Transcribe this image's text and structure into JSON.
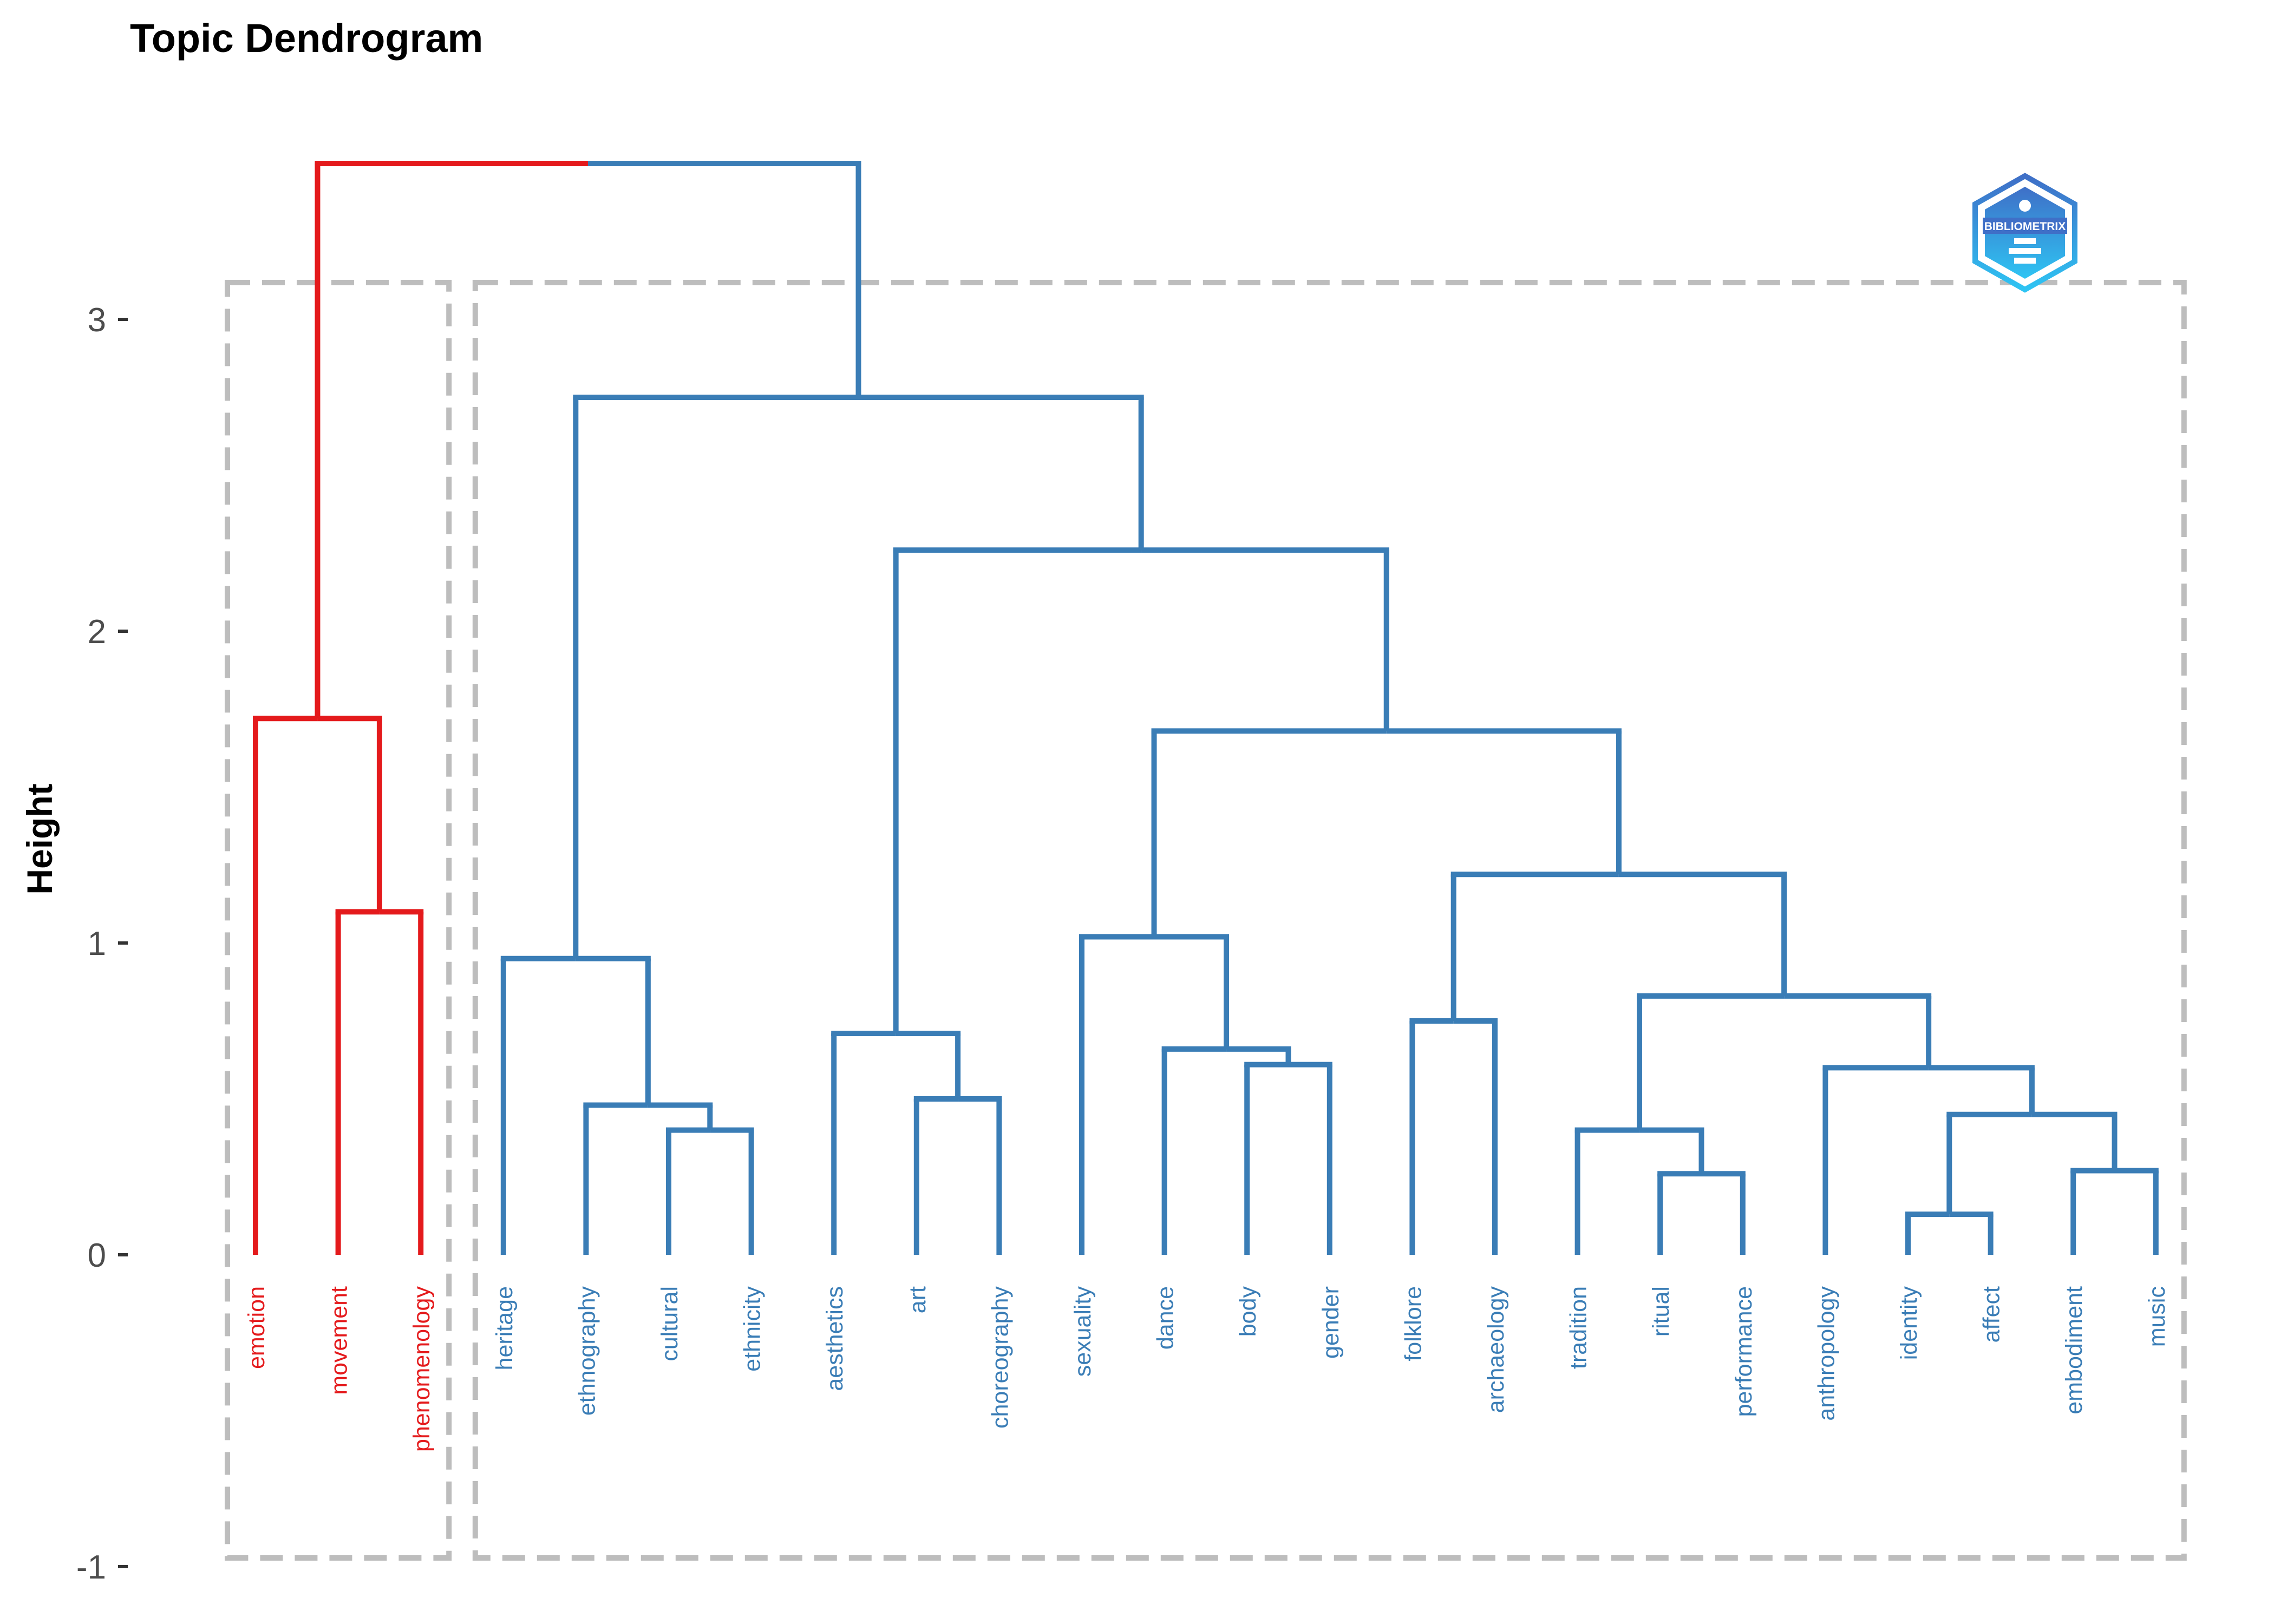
{
  "chart_data": {
    "type": "dendrogram",
    "title": "Topic Dendrogram",
    "ylabel": "Height",
    "xlabel": "",
    "ylim": [
      -1,
      3.5
    ],
    "yticks": [
      -1,
      0,
      1,
      2,
      3
    ],
    "grid": false,
    "leaves": [
      {
        "label": "emotion",
        "cluster": 1
      },
      {
        "label": "movement",
        "cluster": 1
      },
      {
        "label": "phenomenology",
        "cluster": 1
      },
      {
        "label": "heritage",
        "cluster": 2
      },
      {
        "label": "ethnography",
        "cluster": 2
      },
      {
        "label": "cultural",
        "cluster": 2
      },
      {
        "label": "ethnicity",
        "cluster": 2
      },
      {
        "label": "aesthetics",
        "cluster": 2
      },
      {
        "label": "art",
        "cluster": 2
      },
      {
        "label": "choreography",
        "cluster": 2
      },
      {
        "label": "sexuality",
        "cluster": 2
      },
      {
        "label": "dance",
        "cluster": 2
      },
      {
        "label": "body",
        "cluster": 2
      },
      {
        "label": "gender",
        "cluster": 2
      },
      {
        "label": "folklore",
        "cluster": 2
      },
      {
        "label": "archaeology",
        "cluster": 2
      },
      {
        "label": "tradition",
        "cluster": 2
      },
      {
        "label": "ritual",
        "cluster": 2
      },
      {
        "label": "performance",
        "cluster": 2
      },
      {
        "label": "anthropology",
        "cluster": 2
      },
      {
        "label": "identity",
        "cluster": 2
      },
      {
        "label": "affect",
        "cluster": 2
      },
      {
        "label": "embodiment",
        "cluster": 2
      },
      {
        "label": "music",
        "cluster": 2
      }
    ],
    "merges": [
      {
        "id": "m1",
        "left": "movement",
        "right": "phenomenology",
        "height": 1.1,
        "cluster": 1
      },
      {
        "id": "m2",
        "left": "emotion",
        "right": "m1",
        "height": 1.72,
        "cluster": 1
      },
      {
        "id": "m3",
        "left": "cultural",
        "right": "ethnicity",
        "height": 0.4,
        "cluster": 2
      },
      {
        "id": "m4",
        "left": "ethnography",
        "right": "m3",
        "height": 0.48,
        "cluster": 2
      },
      {
        "id": "m5",
        "left": "heritage",
        "right": "m4",
        "height": 0.95,
        "cluster": 2
      },
      {
        "id": "m6",
        "left": "art",
        "right": "choreography",
        "height": 0.5,
        "cluster": 2
      },
      {
        "id": "m7",
        "left": "aesthetics",
        "right": "m6",
        "height": 0.71,
        "cluster": 2
      },
      {
        "id": "m8",
        "left": "body",
        "right": "gender",
        "height": 0.61,
        "cluster": 2
      },
      {
        "id": "m9",
        "left": "dance",
        "right": "m8",
        "height": 0.66,
        "cluster": 2
      },
      {
        "id": "m10",
        "left": "sexuality",
        "right": "m9",
        "height": 1.02,
        "cluster": 2
      },
      {
        "id": "m11",
        "left": "folklore",
        "right": "archaeology",
        "height": 0.75,
        "cluster": 2
      },
      {
        "id": "m12",
        "left": "ritual",
        "right": "performance",
        "height": 0.26,
        "cluster": 2
      },
      {
        "id": "m13",
        "left": "tradition",
        "right": "m12",
        "height": 0.4,
        "cluster": 2
      },
      {
        "id": "m14",
        "left": "identity",
        "right": "affect",
        "height": 0.13,
        "cluster": 2
      },
      {
        "id": "m15",
        "left": "embodiment",
        "right": "music",
        "height": 0.27,
        "cluster": 2
      },
      {
        "id": "m16",
        "left": "m14",
        "right": "m15",
        "height": 0.45,
        "cluster": 2
      },
      {
        "id": "m17",
        "left": "anthropology",
        "right": "m16",
        "height": 0.6,
        "cluster": 2
      },
      {
        "id": "m18",
        "left": "m13",
        "right": "m17",
        "height": 0.83,
        "cluster": 2
      },
      {
        "id": "m19",
        "left": "m11",
        "right": "m18",
        "height": 1.22,
        "cluster": 2
      },
      {
        "id": "m20",
        "left": "m10",
        "right": "m19",
        "height": 1.68,
        "cluster": 2
      },
      {
        "id": "m21",
        "left": "m7",
        "right": "m20",
        "height": 2.26,
        "cluster": 2
      },
      {
        "id": "m22",
        "left": "m5",
        "right": "m21",
        "height": 2.75,
        "cluster": 2
      },
      {
        "id": "m23",
        "left": "m2",
        "right": "m22",
        "height": 3.5,
        "cluster": 0
      }
    ],
    "clusters": [
      {
        "id": 1,
        "color": "#e41a1c"
      },
      {
        "id": 2,
        "color": "#3a7db6"
      }
    ],
    "box_color": "#bdbdbd"
  },
  "logo": {
    "text": "BIBLIOMETRIX",
    "colors": [
      "#4472c4",
      "#29b6f6"
    ]
  }
}
